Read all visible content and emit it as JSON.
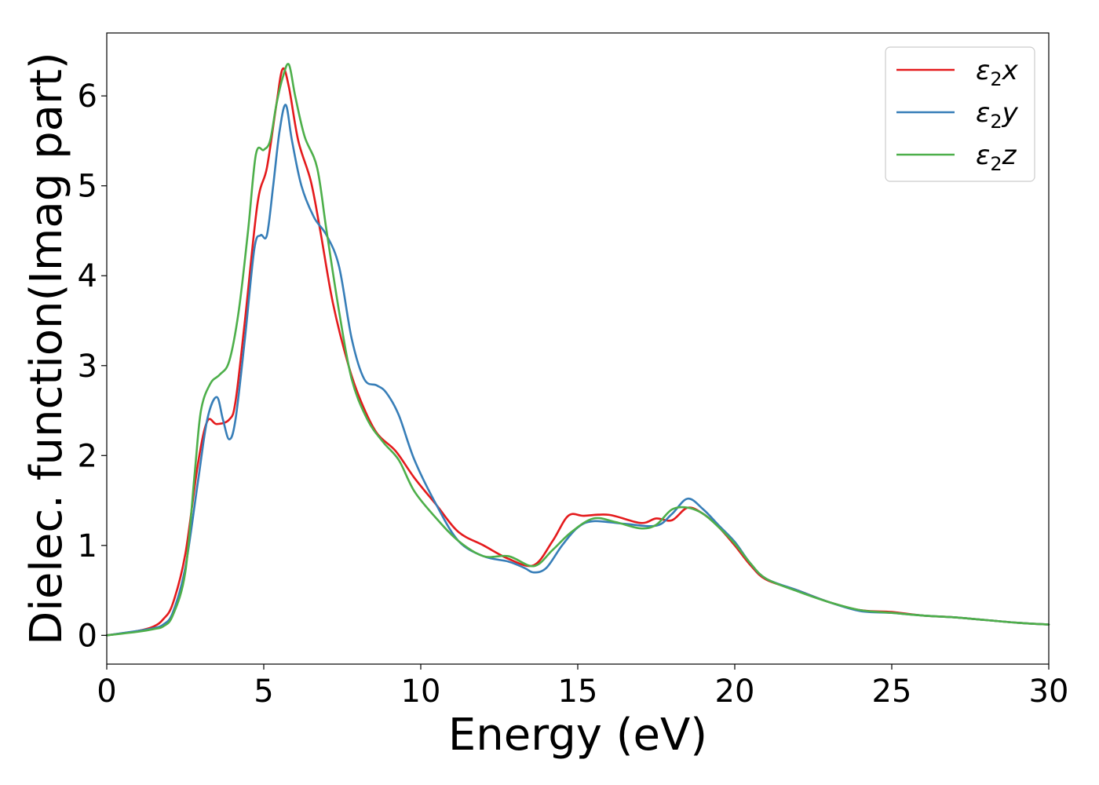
{
  "chart_data": {
    "type": "line",
    "title": "",
    "xlabel": "Energy (eV)",
    "ylabel": "Dielec. function(Imag part)",
    "xlim": [
      0,
      30
    ],
    "ylim": [
      -0.32,
      6.7
    ],
    "xticks": [
      0,
      5,
      10,
      15,
      20,
      25,
      30
    ],
    "xtick_labels": [
      "0",
      "5",
      "10",
      "15",
      "20",
      "25",
      "30"
    ],
    "yticks": [
      0,
      1,
      2,
      3,
      4,
      5,
      6
    ],
    "ytick_labels": [
      "0",
      "1",
      "2",
      "3",
      "4",
      "5",
      "6"
    ],
    "grid": false,
    "legend_position": "top-right",
    "series": [
      {
        "name": "ε₂x",
        "legend_main": "ε",
        "legend_sub": "2",
        "legend_suffix": "x",
        "color": "#e41a1c",
        "x": [
          0,
          1,
          1.5,
          1.8,
          2.1,
          2.5,
          2.9,
          3.2,
          3.5,
          3.9,
          4.1,
          4.4,
          4.8,
          5.1,
          5.4,
          5.6,
          5.8,
          6.1,
          6.5,
          6.8,
          7.2,
          7.7,
          8.1,
          8.6,
          9.2,
          9.8,
          10.5,
          11.2,
          12,
          12.8,
          13.6,
          14.2,
          14.7,
          15.2,
          16,
          17,
          17.5,
          18,
          18.5,
          19,
          19.5,
          20,
          20.5,
          21,
          22,
          23,
          24,
          25,
          26,
          27,
          28,
          29,
          30
        ],
        "y": [
          0,
          0.05,
          0.1,
          0.18,
          0.35,
          0.9,
          1.9,
          2.38,
          2.35,
          2.4,
          2.6,
          3.5,
          4.8,
          5.2,
          5.9,
          6.3,
          6.1,
          5.5,
          5.05,
          4.5,
          3.7,
          3,
          2.6,
          2.25,
          2.05,
          1.75,
          1.45,
          1.15,
          1,
          0.85,
          0.78,
          1.05,
          1.33,
          1.33,
          1.34,
          1.25,
          1.3,
          1.28,
          1.42,
          1.35,
          1.2,
          1,
          0.78,
          0.62,
          0.5,
          0.37,
          0.28,
          0.26,
          0.22,
          0.2,
          0.17,
          0.14,
          0.12
        ]
      },
      {
        "name": "ε₂y",
        "legend_main": "ε",
        "legend_sub": "2",
        "legend_suffix": "y",
        "color": "#377eb8",
        "x": [
          0,
          1,
          1.5,
          1.8,
          2.1,
          2.5,
          2.9,
          3.2,
          3.5,
          3.7,
          3.9,
          4.1,
          4.4,
          4.7,
          4.9,
          5.1,
          5.3,
          5.5,
          5.7,
          5.9,
          6.2,
          6.6,
          7.0,
          7.4,
          7.8,
          8.2,
          8.6,
          8.9,
          9.3,
          9.8,
          10.5,
          11.2,
          12,
          12.8,
          13.3,
          13.6,
          14,
          14.5,
          15,
          15.5,
          16.5,
          17.5,
          18,
          18.5,
          19,
          19.5,
          20,
          20.5,
          21,
          22,
          23,
          24,
          25,
          26,
          27,
          28,
          29,
          30
        ],
        "y": [
          0,
          0.05,
          0.08,
          0.12,
          0.25,
          0.75,
          1.7,
          2.4,
          2.65,
          2.4,
          2.18,
          2.4,
          3.3,
          4.3,
          4.45,
          4.45,
          5.0,
          5.6,
          5.9,
          5.5,
          5.0,
          4.65,
          4.45,
          4.1,
          3.3,
          2.85,
          2.78,
          2.7,
          2.45,
          1.95,
          1.45,
          1.05,
          0.88,
          0.82,
          0.75,
          0.7,
          0.75,
          1.0,
          1.2,
          1.27,
          1.24,
          1.22,
          1.35,
          1.52,
          1.4,
          1.22,
          1.04,
          0.8,
          0.63,
          0.5,
          0.37,
          0.27,
          0.25,
          0.22,
          0.2,
          0.17,
          0.14,
          0.12
        ]
      },
      {
        "name": "ε₂z",
        "legend_main": "ε",
        "legend_sub": "2",
        "legend_suffix": "z",
        "color": "#4daf4a",
        "x": [
          0,
          1,
          1.5,
          1.8,
          2.1,
          2.5,
          2.8,
          3.0,
          3.3,
          3.6,
          3.9,
          4.2,
          4.5,
          4.75,
          5.0,
          5.2,
          5.4,
          5.6,
          5.8,
          6.0,
          6.3,
          6.7,
          7.0,
          7.4,
          7.8,
          8.3,
          8.8,
          9.3,
          9.8,
          10.5,
          11.2,
          12,
          12.8,
          13.6,
          14.2,
          14.8,
          15.5,
          16.2,
          17,
          17.5,
          18,
          18.5,
          19,
          19.5,
          20,
          20.5,
          21,
          22,
          23,
          24,
          25,
          26,
          27,
          28,
          29,
          30
        ],
        "y": [
          0,
          0.04,
          0.07,
          0.1,
          0.22,
          0.7,
          1.8,
          2.5,
          2.8,
          2.9,
          3.05,
          3.6,
          4.5,
          5.35,
          5.4,
          5.5,
          5.9,
          6.2,
          6.35,
          6.0,
          5.55,
          5.2,
          4.5,
          3.6,
          2.85,
          2.4,
          2.15,
          1.95,
          1.6,
          1.3,
          1.05,
          0.88,
          0.88,
          0.77,
          0.95,
          1.15,
          1.3,
          1.26,
          1.19,
          1.23,
          1.4,
          1.42,
          1.35,
          1.2,
          1.02,
          0.8,
          0.63,
          0.49,
          0.37,
          0.28,
          0.25,
          0.22,
          0.2,
          0.17,
          0.14,
          0.12
        ]
      }
    ]
  }
}
